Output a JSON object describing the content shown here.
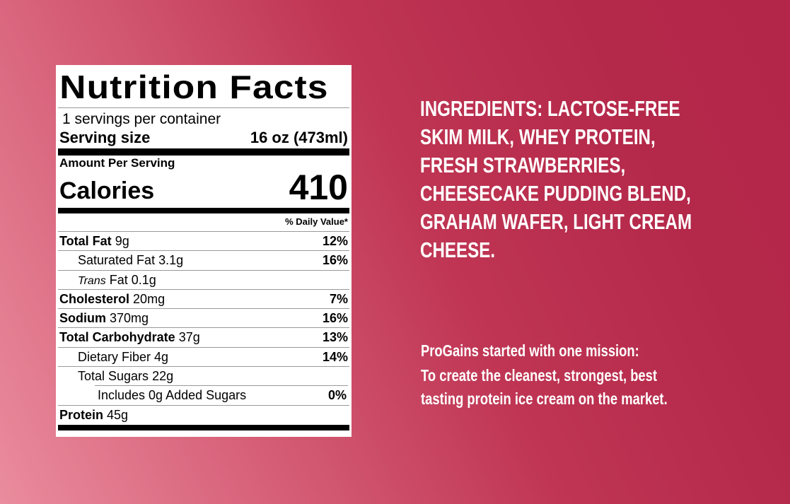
{
  "label": {
    "title": "Nutrition Facts",
    "servings": "1 servings per container",
    "serving_size_label": "Serving size",
    "serving_size_value": "16 oz (473ml)",
    "amount_per_serving": "Amount Per Serving",
    "calories_label": "Calories",
    "calories_value": "410",
    "daily_value_header": "% Daily Value*",
    "rows": [
      {
        "name": "Total Fat",
        "amount": "9g",
        "dv": "12%"
      },
      {
        "name": "Saturated Fat",
        "amount": "3.1g",
        "dv": "16%"
      },
      {
        "name": "Trans",
        "rest": "Fat 0.1g",
        "dv": ""
      },
      {
        "name": "Cholesterol",
        "amount": "20mg",
        "dv": "7%"
      },
      {
        "name": "Sodium",
        "amount": "370mg",
        "dv": "16%"
      },
      {
        "name": "Total Carbohydrate",
        "amount": "37g",
        "dv": "13%"
      },
      {
        "name": "Dietary Fiber",
        "amount": "4g",
        "dv": "14%"
      },
      {
        "name": "Total Sugars",
        "amount": "22g",
        "dv": ""
      },
      {
        "name": "Includes 0g Added Sugars",
        "amount": "",
        "dv": "0%"
      },
      {
        "name": "Protein",
        "amount": "45g",
        "dv": ""
      }
    ]
  },
  "ingredients": [
    "INGREDIENTS: LACTOSE-FREE",
    "SKIM MILK, WHEY PROTEIN,",
    "FRESH STRAWBERRIES,",
    "CHEESECAKE PUDDING BLEND,",
    "GRAHAM WAFER, LIGHT CREAM",
    "CHEESE."
  ],
  "mission": {
    "heading": "ProGains started with one mission:",
    "lines": [
      "To create the cleanest, strongest, best",
      "tasting protein ice cream on the market."
    ]
  }
}
